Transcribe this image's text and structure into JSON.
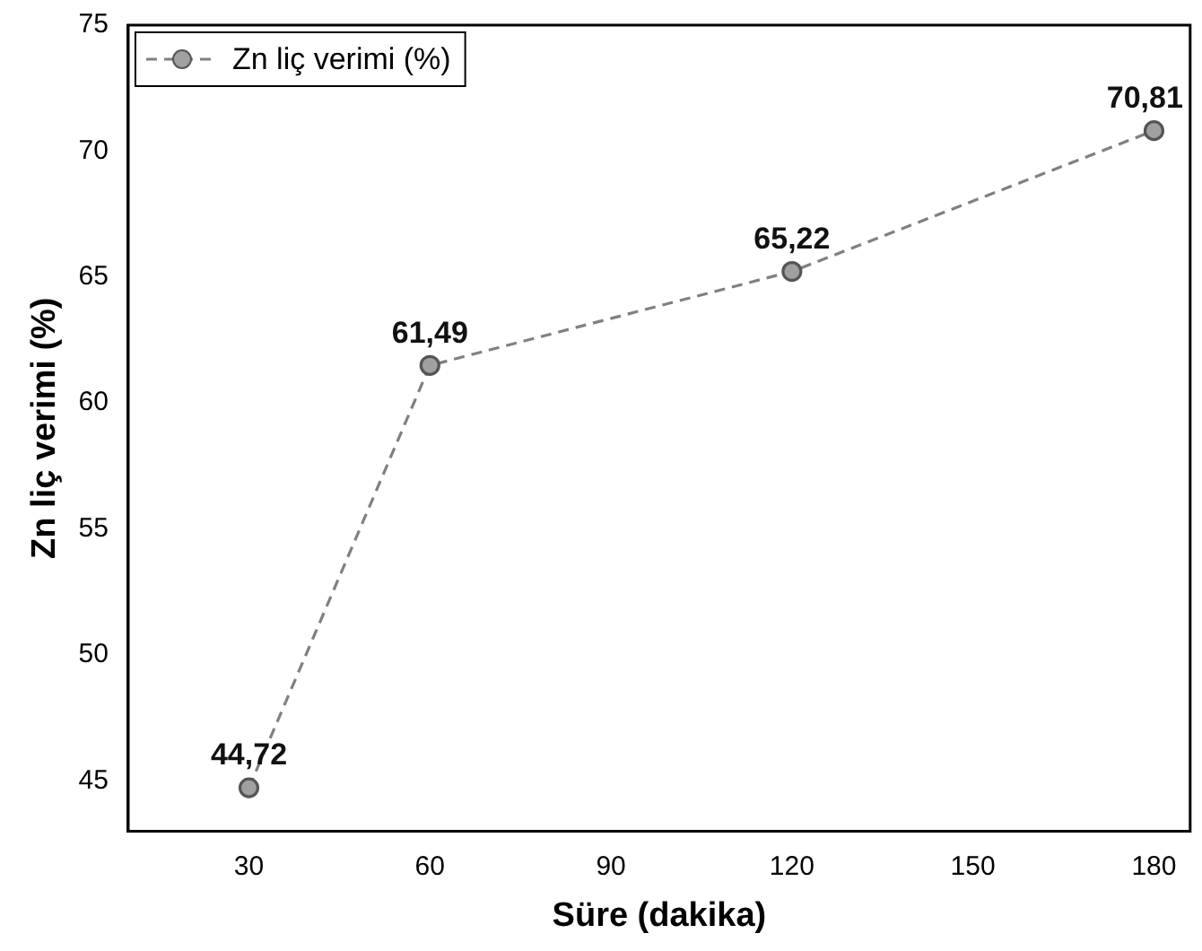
{
  "chart_data": {
    "type": "line",
    "xlabel": "Süre (dakika)",
    "ylabel": "Zn liç verimi (%)",
    "x": [
      30,
      60,
      120,
      180
    ],
    "series": [
      {
        "name": "Zn liç verimi (%)",
        "color": "#808080",
        "values": [
          44.72,
          61.49,
          65.22,
          70.81
        ],
        "value_labels": [
          "44,72",
          "61,49",
          "65,22",
          "70,81"
        ]
      }
    ],
    "xlim": [
      10,
      186
    ],
    "xticks": [
      30,
      60,
      90,
      120,
      150,
      180
    ],
    "ylim": [
      43,
      75
    ],
    "yticks": [
      45,
      50,
      55,
      60,
      65,
      70,
      75
    ],
    "grid": false,
    "legend": "top left",
    "marker": "circle",
    "line_style": "dashed"
  }
}
